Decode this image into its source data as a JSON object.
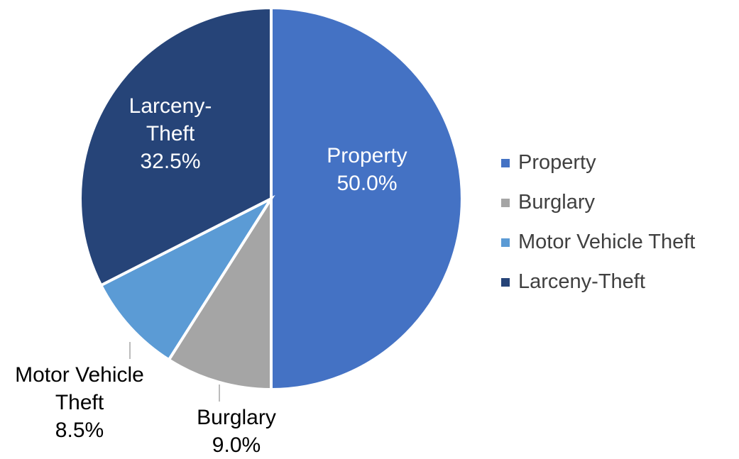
{
  "chart_data": {
    "type": "pie",
    "categories": [
      "Property",
      "Burglary",
      "Motor Vehicle Theft",
      "Larceny-Theft"
    ],
    "values": [
      50.0,
      9.0,
      8.5,
      32.5
    ],
    "value_labels": [
      "50.0%",
      "9.0%",
      "8.5%",
      "32.5%"
    ],
    "colors": [
      "#4472c4",
      "#a5a5a5",
      "#5b9bd5",
      "#264478"
    ],
    "legend": "right"
  }
}
